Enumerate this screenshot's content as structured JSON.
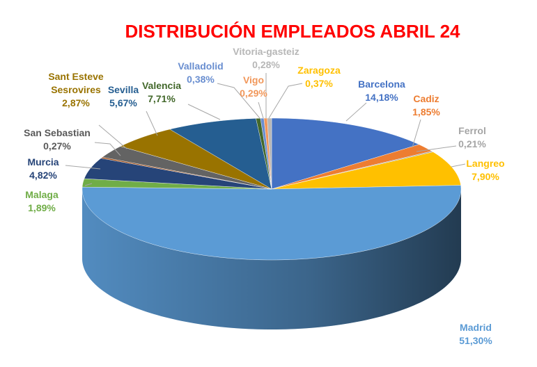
{
  "chart_data": {
    "type": "pie",
    "title": "DISTRIBUCIÓN EMPLEADOS ABRIL 24",
    "slices": [
      {
        "name": "Barcelona",
        "label": "Barcelona",
        "value_label": "14,18%",
        "value": 14.18,
        "color": "#4472c4"
      },
      {
        "name": "Cadiz",
        "label": "Cadiz",
        "value_label": "1,85%",
        "value": 1.85,
        "color": "#ed7d31"
      },
      {
        "name": "Ferrol",
        "label": "Ferrol",
        "value_label": "0,21%",
        "value": 0.21,
        "color": "#a5a5a5"
      },
      {
        "name": "Langreo",
        "label": "Langreo",
        "value_label": "7,90%",
        "value": 7.9,
        "color": "#ffc000"
      },
      {
        "name": "Madrid",
        "label": "Madrid",
        "value_label": "51,30%",
        "value": 51.3,
        "color": "#5b9bd5"
      },
      {
        "name": "Malaga",
        "label": "Malaga",
        "value_label": "1,89%",
        "value": 1.89,
        "color": "#70ad47"
      },
      {
        "name": "Murcia",
        "label": "Murcia",
        "value_label": "4,82%",
        "value": 4.82,
        "color": "#264478"
      },
      {
        "name": "San Sebastian",
        "label": "San Sebastian",
        "value_label": "0,27%",
        "value": 0.27,
        "color": "#9e480e"
      },
      {
        "name": "Sant Esteve Sesrovires",
        "label": "Sant Esteve\nSesrovires",
        "value_label": "2,87%",
        "value": 2.87,
        "color": "#636363"
      },
      {
        "name": "Sevilla",
        "label": "Sevilla",
        "value_label": "5,67%",
        "value": 5.67,
        "color": "#997300"
      },
      {
        "name": "Valencia",
        "label": "Valencia",
        "value_label": "7,71%",
        "value": 7.71,
        "color": "#255e91"
      },
      {
        "name": "Valladolid",
        "label": "Valladolid",
        "value_label": "0,38%",
        "value": 0.38,
        "color": "#43682b"
      },
      {
        "name": "Vigo",
        "label": "Vigo",
        "value_label": "0,29%",
        "value": 0.29,
        "color": "#698ed0"
      },
      {
        "name": "Vitoria-gasteiz",
        "label": "Vitoria-gasteiz",
        "value_label": "0,28%",
        "value": 0.28,
        "color": "#f1975a"
      },
      {
        "name": "Zaragoza",
        "label": "Zaragoza",
        "value_label": "0,37%",
        "value": 0.37,
        "color": "#b7b7b7"
      }
    ],
    "label_colors": {
      "Barcelona": "#4472c4",
      "Cadiz": "#ed7d31",
      "Ferrol": "#a5a5a5",
      "Langreo": "#ffc000",
      "Madrid": "#5b9bd5",
      "Malaga": "#70ad47",
      "Murcia": "#264478",
      "San Sebastian": "#595959",
      "Sant Esteve Sesrovires": "#997300",
      "Sevilla": "#255e91",
      "Valencia": "#43682b",
      "Valladolid": "#698ed0",
      "Vigo": "#f1975a",
      "Vitoria-gasteiz": "#b7b7b7",
      "Zaragoza": "#ffc000"
    },
    "legend": "none"
  }
}
